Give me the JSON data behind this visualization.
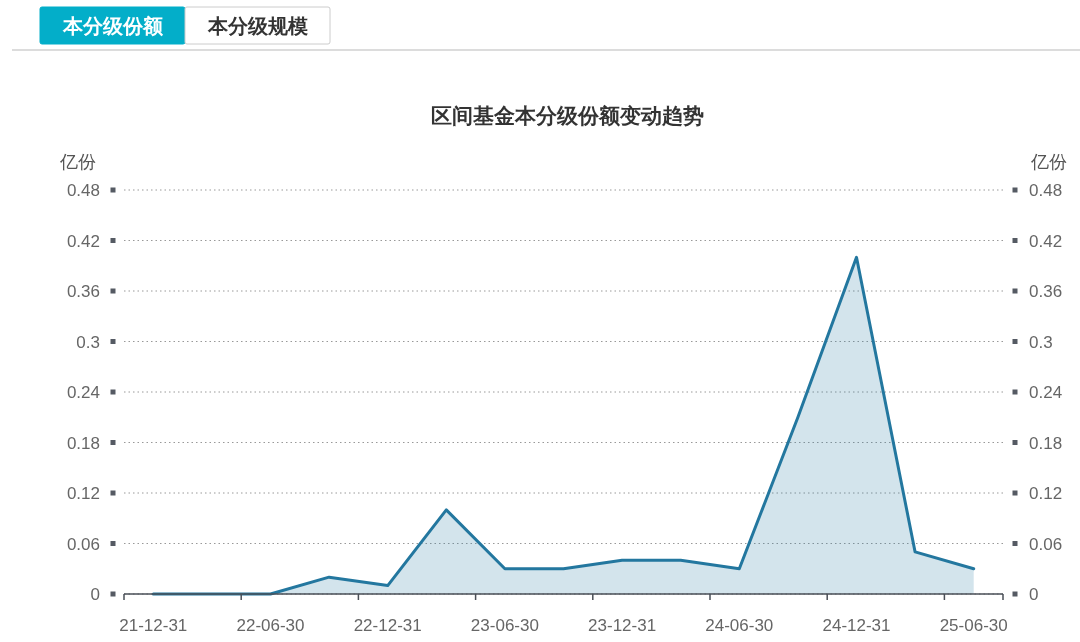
{
  "chart_data": {
    "type": "area",
    "title": "区间基金本分级份额变动趋势",
    "ylabel": "亿份",
    "y2label": "亿份",
    "annotations": [
      "本分级份额",
      "本分级规模"
    ],
    "categories": [
      "21-12-31",
      null,
      "22-06-30",
      null,
      "22-12-31",
      null,
      "23-06-30",
      null,
      "23-12-31",
      null,
      "24-06-30",
      null,
      "24-12-31",
      null,
      "25-06-30"
    ],
    "series": [
      {
        "color": "#23779f",
        "values": [
          0,
          0,
          0,
          0.02,
          0.01,
          0.1,
          0.03,
          0.03,
          0.04,
          0.04,
          0.03,
          0.21,
          0.4,
          0.05,
          0.03
        ]
      }
    ],
    "ylim": [
      0,
      0.48
    ],
    "yticks": [
      0,
      0.06,
      0.12,
      0.18,
      0.24,
      0.3,
      0.36,
      0.42,
      0.48
    ],
    "y2lim": [
      0,
      0.48
    ],
    "y2ticks": [
      0,
      0.06,
      0.12,
      0.18,
      0.24,
      0.3,
      0.36,
      0.42,
      0.48
    ],
    "grid": "y"
  }
}
